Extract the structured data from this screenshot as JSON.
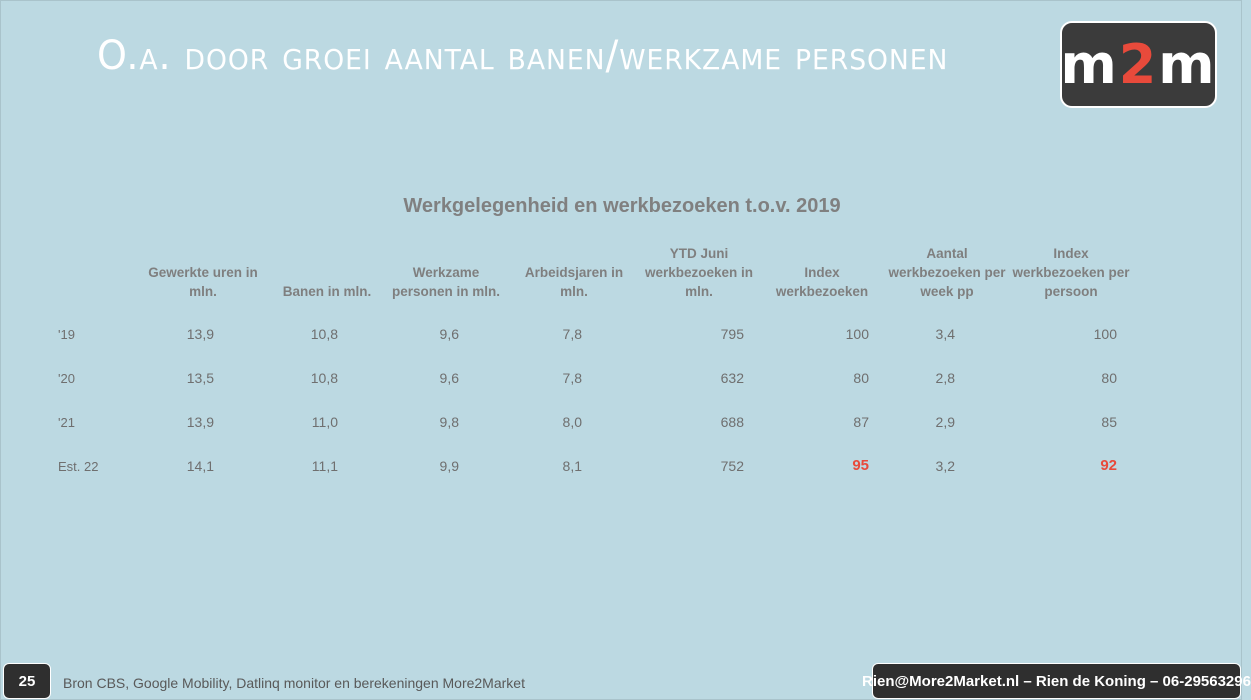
{
  "slide": {
    "title": "O.a. door groei aantal banen/werkzame personen",
    "logo": {
      "left": "m",
      "accent": "2",
      "right": "m"
    },
    "accent_color": "#e84a3b",
    "background_color": "#bcd9e2"
  },
  "table": {
    "title": "Werkgelegenheid en werkbezoeken t.o.v. 2019",
    "headers": [
      "Gewerkte uren in mln.",
      "Banen in mln.",
      "Werkzame personen in mln.",
      "Arbeidsjaren in mln.",
      "YTD Juni werkbezoeken in mln.",
      "Index werkbezoeken",
      "Aantal werkbezoeken per week pp",
      "Index werkbezoeken per persoon"
    ],
    "rows": [
      {
        "label": "'19",
        "values": [
          "13,9",
          "10,8",
          "9,6",
          "7,8",
          "795",
          "100",
          "3,4",
          "100"
        ]
      },
      {
        "label": "'20",
        "values": [
          "13,5",
          "10,8",
          "9,6",
          "7,8",
          "632",
          "80",
          "2,8",
          "80"
        ]
      },
      {
        "label": "'21",
        "values": [
          "13,9",
          "11,0",
          "9,8",
          "8,0",
          "688",
          "87",
          "2,9",
          "85"
        ]
      },
      {
        "label": "Est. 22",
        "values": [
          "14,1",
          "11,1",
          "9,9",
          "8,1",
          "752",
          "95",
          "3,2",
          "92"
        ]
      }
    ]
  },
  "footer": {
    "page_number": "25",
    "source": "Bron CBS, Google Mobility, Datlinq monitor en berekeningen More2Market",
    "contact": "Rien@More2Market.nl – Rien de Koning – 06-29563296"
  }
}
